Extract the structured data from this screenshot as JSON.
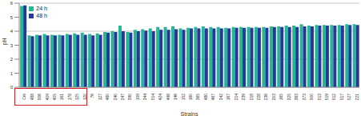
{
  "chart_data": {
    "type": "bar",
    "x_label": "Strains",
    "y_label": "pH",
    "categories": [
      "Cnt",
      "488",
      "506",
      "409",
      "405",
      "161",
      "178",
      "125",
      "120",
      "76",
      "127",
      "460",
      "240",
      "247",
      "390",
      "159",
      "344",
      "514",
      "424",
      "496",
      "146",
      "152",
      "160",
      "365",
      "480",
      "467",
      "342",
      "167",
      "214",
      "239",
      "218",
      "228",
      "236",
      "203",
      "165",
      "325",
      "363",
      "373",
      "500",
      "513",
      "519",
      "512",
      "517",
      "527",
      "221"
    ],
    "series": [
      {
        "name": "24 h",
        "color": "#26b597",
        "values": [
          5.8,
          3.7,
          3.75,
          3.8,
          3.75,
          3.75,
          3.8,
          3.85,
          3.9,
          3.8,
          3.85,
          3.95,
          4.0,
          4.4,
          3.95,
          4.1,
          4.15,
          4.2,
          4.3,
          4.3,
          4.35,
          4.2,
          4.25,
          4.3,
          4.35,
          4.3,
          4.3,
          4.25,
          4.3,
          4.3,
          4.3,
          4.3,
          4.3,
          4.35,
          4.35,
          4.4,
          4.4,
          4.5,
          4.4,
          4.45,
          4.45,
          4.45,
          4.45,
          4.5,
          4.5
        ]
      },
      {
        "name": "48 h",
        "color": "#233a9c",
        "values": [
          5.85,
          3.65,
          3.7,
          3.7,
          3.7,
          3.7,
          3.75,
          3.75,
          3.75,
          3.7,
          3.75,
          3.9,
          3.95,
          4.0,
          3.9,
          4.0,
          4.05,
          4.0,
          4.1,
          4.1,
          4.15,
          4.1,
          4.2,
          4.2,
          4.2,
          4.2,
          4.2,
          4.2,
          4.25,
          4.25,
          4.25,
          4.25,
          4.25,
          4.3,
          4.3,
          4.3,
          4.3,
          4.35,
          4.35,
          4.4,
          4.4,
          4.4,
          4.4,
          4.45,
          4.45
        ]
      }
    ],
    "ylim": [
      0,
      6
    ],
    "yticks": [
      0,
      1,
      2,
      3,
      4,
      5,
      6
    ],
    "grid": true,
    "legend": "upper left"
  }
}
